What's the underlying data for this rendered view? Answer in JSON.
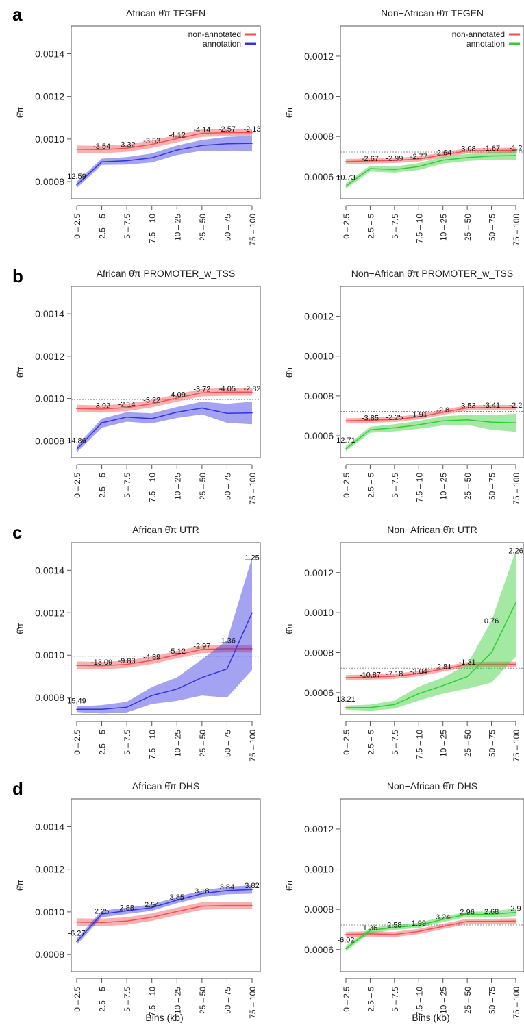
{
  "panel_letters": [
    "a",
    "b",
    "c",
    "d"
  ],
  "ylabel": "θ̂π",
  "xlabel": "Bins (kb)",
  "colors": {
    "non_annotated": "#f05050",
    "african_annotation": "#3333e0",
    "non_african_annotation": "#33cc33",
    "reference": "#888888"
  },
  "chart_data": [
    {
      "type": "line",
      "panel": "a",
      "population": "African",
      "title_pre": "African ",
      "title_post": " TFGEN",
      "categories": [
        "0 – 2.5",
        "2.5 – 5",
        "5 – 7.5",
        "7.5 – 10",
        "10 – 25",
        "25 – 50",
        "50 – 75",
        "75 – 100"
      ],
      "ylim": [
        0.00072,
        0.00153
      ],
      "yticks": [
        0.0008,
        0.001,
        0.0012,
        0.0014
      ],
      "ytick_labels": [
        "0.0008",
        "0.0010",
        "0.0012",
        "0.0014"
      ],
      "reference": 0.000995,
      "legend": [
        "non-annotated",
        "annotation"
      ],
      "series": [
        {
          "name": "non-annotated",
          "role": "non_annotated",
          "values": [
            0.000952,
            0.00095,
            0.000957,
            0.000975,
            0.001002,
            0.001027,
            0.00103,
            0.00103
          ],
          "lower": [
            0.000935,
            0.000933,
            0.00094,
            0.000958,
            0.000985,
            0.00101,
            0.001013,
            0.001013
          ],
          "upper": [
            0.00097,
            0.000968,
            0.000975,
            0.000993,
            0.00102,
            0.001045,
            0.001048,
            0.001048
          ]
        },
        {
          "name": "annotation",
          "role": "annotation",
          "values": [
            0.000785,
            0.000893,
            0.000898,
            0.000912,
            0.000948,
            0.00097,
            0.000978,
            0.00098
          ],
          "lower": [
            0.00077,
            0.000878,
            0.00088,
            0.00089,
            0.000925,
            0.000945,
            0.000945,
            0.000945
          ],
          "upper": [
            0.0008,
            0.000908,
            0.000915,
            0.000932,
            0.00097,
            0.000995,
            0.00101,
            0.001015
          ]
        }
      ],
      "labels": [
        "12.59",
        "-3.54",
        "-3.32",
        "-3.53",
        "-4.12",
        "-4.14",
        "-2.57",
        "-2.13"
      ]
    },
    {
      "type": "line",
      "panel": "a",
      "population": "Non-African",
      "title_pre": "Non−African ",
      "title_post": " TFGEN",
      "categories": [
        "0 – 2.5",
        "2.5 – 5",
        "5 – 7.5",
        "7.5 – 10",
        "10 – 25",
        "25 – 50",
        "50 – 75",
        "75 – 100"
      ],
      "ylim": [
        0.00049,
        0.00135
      ],
      "yticks": [
        0.0006,
        0.0008,
        0.001,
        0.0012
      ],
      "ytick_labels": [
        "0.0006",
        "0.0008",
        "0.0010",
        "0.0012"
      ],
      "reference": 0.000722,
      "legend": [
        "non-annotated",
        "annotation"
      ],
      "series": [
        {
          "name": "non-annotated",
          "role": "non_annotated",
          "values": [
            0.000675,
            0.000678,
            0.00068,
            0.000688,
            0.000708,
            0.000728,
            0.00073,
            0.000732
          ],
          "lower": [
            0.000662,
            0.000665,
            0.000667,
            0.000675,
            0.000695,
            0.000715,
            0.000717,
            0.000719
          ],
          "upper": [
            0.000688,
            0.000691,
            0.000693,
            0.000701,
            0.000721,
            0.000741,
            0.000743,
            0.000745
          ]
        },
        {
          "name": "annotation",
          "role": "annotation",
          "values": [
            0.000553,
            0.00064,
            0.000635,
            0.00065,
            0.000682,
            0.000695,
            0.000703,
            0.000705
          ],
          "lower": [
            0.00054,
            0.000625,
            0.00062,
            0.000633,
            0.000665,
            0.000678,
            0.000684,
            0.000682
          ],
          "upper": [
            0.000566,
            0.000655,
            0.00065,
            0.000667,
            0.000699,
            0.000712,
            0.000722,
            0.000728
          ]
        }
      ],
      "labels": [
        "10.73",
        "-2.67",
        "-2.99",
        "-2.77",
        "-2.64",
        "-3.08",
        "-1.67",
        "-1.2"
      ]
    },
    {
      "type": "line",
      "panel": "b",
      "population": "African",
      "title_pre": "African ",
      "title_post": " PROMOTER_w_TSS",
      "categories": [
        "0 – 2.5",
        "2.5 – 5",
        "5 – 7.5",
        "7.5 – 10",
        "10 – 25",
        "25 – 50",
        "50 – 75",
        "75 – 100"
      ],
      "ylim": [
        0.00072,
        0.00153
      ],
      "yticks": [
        0.0008,
        0.001,
        0.0012,
        0.0014
      ],
      "ytick_labels": [
        "0.0008",
        "0.0010",
        "0.0012",
        "0.0014"
      ],
      "reference": 0.000995,
      "legend": [],
      "series": [
        {
          "name": "non-annotated",
          "role": "non_annotated",
          "values": [
            0.000952,
            0.00095,
            0.000957,
            0.000975,
            0.001002,
            0.001027,
            0.00103,
            0.00103
          ],
          "lower": [
            0.000935,
            0.000933,
            0.00094,
            0.000958,
            0.000985,
            0.00101,
            0.001013,
            0.001013
          ],
          "upper": [
            0.00097,
            0.000968,
            0.000975,
            0.000993,
            0.00102,
            0.001045,
            0.001048,
            0.001048
          ]
        },
        {
          "name": "annotation",
          "role": "annotation",
          "values": [
            0.00076,
            0.000885,
            0.000912,
            0.000905,
            0.000935,
            0.000955,
            0.00093,
            0.000932
          ],
          "lower": [
            0.000745,
            0.000862,
            0.00089,
            0.000882,
            0.000908,
            0.000925,
            0.000885,
            0.000878
          ],
          "upper": [
            0.000775,
            0.000905,
            0.000935,
            0.00093,
            0.00096,
            0.000985,
            0.000975,
            0.000985
          ]
        }
      ],
      "labels": [
        "14.86",
        "-3.92",
        "-2.14",
        "-3.22",
        "-4.09",
        "-3.72",
        "-4.05",
        "-2.82"
      ]
    },
    {
      "type": "line",
      "panel": "b",
      "population": "Non-African",
      "title_pre": "Non−African ",
      "title_post": " PROMOTER_w_TSS",
      "categories": [
        "0 – 2.5",
        "2.5 – 5",
        "5 – 7.5",
        "7.5 – 10",
        "10 – 25",
        "25 – 50",
        "50 – 75",
        "75 – 100"
      ],
      "ylim": [
        0.00049,
        0.00135
      ],
      "yticks": [
        0.0006,
        0.0008,
        0.001,
        0.0012
      ],
      "ytick_labels": [
        "0.0006",
        "0.0008",
        "0.0010",
        "0.0012"
      ],
      "reference": 0.000722,
      "legend": [],
      "series": [
        {
          "name": "non-annotated",
          "role": "non_annotated",
          "values": [
            0.000675,
            0.000678,
            0.000682,
            0.000695,
            0.000718,
            0.00074,
            0.000742,
            0.000742
          ],
          "lower": [
            0.000662,
            0.000665,
            0.000669,
            0.000682,
            0.000705,
            0.000727,
            0.000729,
            0.000729
          ],
          "upper": [
            0.000688,
            0.000691,
            0.000695,
            0.000708,
            0.000731,
            0.000753,
            0.000755,
            0.000755
          ]
        },
        {
          "name": "annotation",
          "role": "annotation",
          "values": [
            0.000535,
            0.00063,
            0.00064,
            0.000655,
            0.000675,
            0.00068,
            0.000668,
            0.000665
          ],
          "lower": [
            0.000522,
            0.000615,
            0.000622,
            0.000635,
            0.000652,
            0.000655,
            0.00063,
            0.00062
          ],
          "upper": [
            0.000548,
            0.000645,
            0.000658,
            0.000675,
            0.000698,
            0.000705,
            0.000705,
            0.00071
          ]
        }
      ],
      "labels": [
        "12.71",
        "-3.85",
        "-2.25",
        "-1.91",
        "-2.8",
        "-3.53",
        "-3.41",
        "-2.2"
      ]
    },
    {
      "type": "line",
      "panel": "c",
      "population": "African",
      "title_pre": "African ",
      "title_post": " UTR",
      "categories": [
        "0 – 2.5",
        "2.5 – 5",
        "5 – 7.5",
        "7.5 – 10",
        "10 – 25",
        "25 – 50",
        "50 – 75",
        "75 – 100"
      ],
      "ylim": [
        0.00072,
        0.00153
      ],
      "yticks": [
        0.0008,
        0.001,
        0.0012,
        0.0014
      ],
      "ytick_labels": [
        "0.0008",
        "0.0010",
        "0.0012",
        "0.0014"
      ],
      "reference": 0.000995,
      "legend": [],
      "series": [
        {
          "name": "non-annotated",
          "role": "non_annotated",
          "values": [
            0.000952,
            0.00095,
            0.000957,
            0.000975,
            0.001002,
            0.001027,
            0.00103,
            0.00103
          ],
          "lower": [
            0.000935,
            0.000933,
            0.00094,
            0.000958,
            0.000985,
            0.00101,
            0.001013,
            0.001013
          ],
          "upper": [
            0.00097,
            0.000968,
            0.000975,
            0.000993,
            0.00102,
            0.001045,
            0.001048,
            0.001048
          ]
        },
        {
          "name": "annotation",
          "role": "annotation",
          "values": [
            0.000745,
            0.000745,
            0.000755,
            0.00081,
            0.00084,
            0.000895,
            0.000935,
            0.0012
          ],
          "lower": [
            0.000732,
            0.000725,
            0.00073,
            0.00077,
            0.000785,
            0.00081,
            0.0008,
            0.00093
          ],
          "upper": [
            0.000758,
            0.000765,
            0.00078,
            0.00085,
            0.000895,
            0.00098,
            0.00107,
            0.00146
          ]
        }
      ],
      "labels": [
        "15.49",
        "-13.09",
        "-9.83",
        "-4.89",
        "-5.12",
        "-2.97",
        "-1.36",
        "1.25"
      ]
    },
    {
      "type": "line",
      "panel": "c",
      "population": "Non-African",
      "title_pre": "Non−African ",
      "title_post": " UTR",
      "categories": [
        "0 – 2.5",
        "2.5 – 5",
        "5 – 7.5",
        "7.5 – 10",
        "10 – 25",
        "25 – 50",
        "50 – 75",
        "75 – 100"
      ],
      "ylim": [
        0.00049,
        0.00135
      ],
      "yticks": [
        0.0006,
        0.0008,
        0.001,
        0.0012
      ],
      "ytick_labels": [
        "0.0006",
        "0.0008",
        "0.0010",
        "0.0012"
      ],
      "reference": 0.000722,
      "legend": [],
      "series": [
        {
          "name": "non-annotated",
          "role": "non_annotated",
          "values": [
            0.000675,
            0.000678,
            0.000682,
            0.000695,
            0.000718,
            0.00074,
            0.000742,
            0.000742
          ],
          "lower": [
            0.000662,
            0.000665,
            0.000669,
            0.000682,
            0.000705,
            0.000727,
            0.000729,
            0.000729
          ],
          "upper": [
            0.000688,
            0.000691,
            0.000695,
            0.000708,
            0.000731,
            0.000753,
            0.000755,
            0.000755
          ]
        },
        {
          "name": "annotation",
          "role": "annotation",
          "values": [
            0.000525,
            0.000525,
            0.00054,
            0.000595,
            0.000635,
            0.00068,
            0.0008,
            0.00105
          ],
          "lower": [
            0.000515,
            0.00051,
            0.00052,
            0.00056,
            0.000595,
            0.00062,
            0.00065,
            0.00078
          ],
          "upper": [
            0.000535,
            0.00054,
            0.00056,
            0.00063,
            0.000675,
            0.00074,
            0.00096,
            0.00131
          ]
        }
      ],
      "labels": [
        "13.21",
        "-10.87",
        "-7.18",
        "-3.04",
        "-2.81",
        "-1.31",
        "0.76",
        "2.26"
      ]
    },
    {
      "type": "line",
      "panel": "d",
      "population": "African",
      "title_pre": "African ",
      "title_post": " DHS",
      "categories": [
        "0 – 2.5",
        "2.5 – 5",
        "5 – 7.5",
        "7.5 – 10",
        "10 – 25",
        "25 – 50",
        "50 – 75",
        "75 – 100"
      ],
      "ylim": [
        0.00072,
        0.00153
      ],
      "yticks": [
        0.0008,
        0.001,
        0.0012,
        0.0014
      ],
      "ytick_labels": [
        "0.0008",
        "0.0010",
        "0.0012",
        "0.0014"
      ],
      "reference": 0.000995,
      "legend": [],
      "series": [
        {
          "name": "non-annotated",
          "role": "non_annotated",
          "values": [
            0.000952,
            0.00095,
            0.000957,
            0.000975,
            0.001002,
            0.001027,
            0.00103,
            0.00103
          ],
          "lower": [
            0.000935,
            0.000933,
            0.00094,
            0.000958,
            0.000985,
            0.00101,
            0.001013,
            0.001013
          ],
          "upper": [
            0.00097,
            0.000968,
            0.000975,
            0.000993,
            0.00102,
            0.001045,
            0.001048,
            0.001048
          ]
        },
        {
          "name": "annotation",
          "role": "annotation",
          "values": [
            0.00086,
            0.00099,
            0.001005,
            0.00102,
            0.001055,
            0.001085,
            0.0011,
            0.001105
          ],
          "lower": [
            0.000845,
            0.000975,
            0.00099,
            0.001005,
            0.00104,
            0.00107,
            0.001082,
            0.001085
          ],
          "upper": [
            0.000875,
            0.001005,
            0.00102,
            0.001035,
            0.00107,
            0.0011,
            0.001118,
            0.001125
          ]
        }
      ],
      "labels": [
        "-6.27",
        "2.25",
        "2.88",
        "2.54",
        "3.85",
        "3.18",
        "3.84",
        "3.82"
      ]
    },
    {
      "type": "line",
      "panel": "d",
      "population": "Non-African",
      "title_pre": "Non−African ",
      "title_post": " DHS",
      "categories": [
        "0 – 2.5",
        "2.5 – 5",
        "5 – 7.5",
        "7.5 – 10",
        "10 – 25",
        "25 – 50",
        "50 – 75",
        "75 – 100"
      ],
      "ylim": [
        0.00049,
        0.00135
      ],
      "yticks": [
        0.0006,
        0.0008,
        0.001,
        0.0012
      ],
      "ytick_labels": [
        "0.0006",
        "0.0008",
        "0.0010",
        "0.0012"
      ],
      "reference": 0.000722,
      "legend": [],
      "series": [
        {
          "name": "non-annotated",
          "role": "non_annotated",
          "values": [
            0.000675,
            0.000678,
            0.000675,
            0.00069,
            0.000715,
            0.00074,
            0.00074,
            0.000742
          ],
          "lower": [
            0.000662,
            0.000665,
            0.000662,
            0.000677,
            0.000702,
            0.000727,
            0.000727,
            0.000729
          ],
          "upper": [
            0.000688,
            0.000691,
            0.000688,
            0.000703,
            0.000728,
            0.000753,
            0.000753,
            0.000755
          ]
        },
        {
          "name": "annotation",
          "role": "annotation",
          "values": [
            0.000605,
            0.000695,
            0.00071,
            0.00072,
            0.00075,
            0.000775,
            0.000775,
            0.000785
          ],
          "lower": [
            0.000592,
            0.000682,
            0.000697,
            0.000707,
            0.000737,
            0.000762,
            0.00076,
            0.000765
          ],
          "upper": [
            0.000618,
            0.000708,
            0.000723,
            0.000733,
            0.000763,
            0.000788,
            0.00079,
            0.000805
          ]
        }
      ],
      "labels": [
        "-6.02",
        "1.36",
        "2.58",
        "1.99",
        "3.24",
        "2.96",
        "2.68",
        "2.9"
      ]
    }
  ]
}
